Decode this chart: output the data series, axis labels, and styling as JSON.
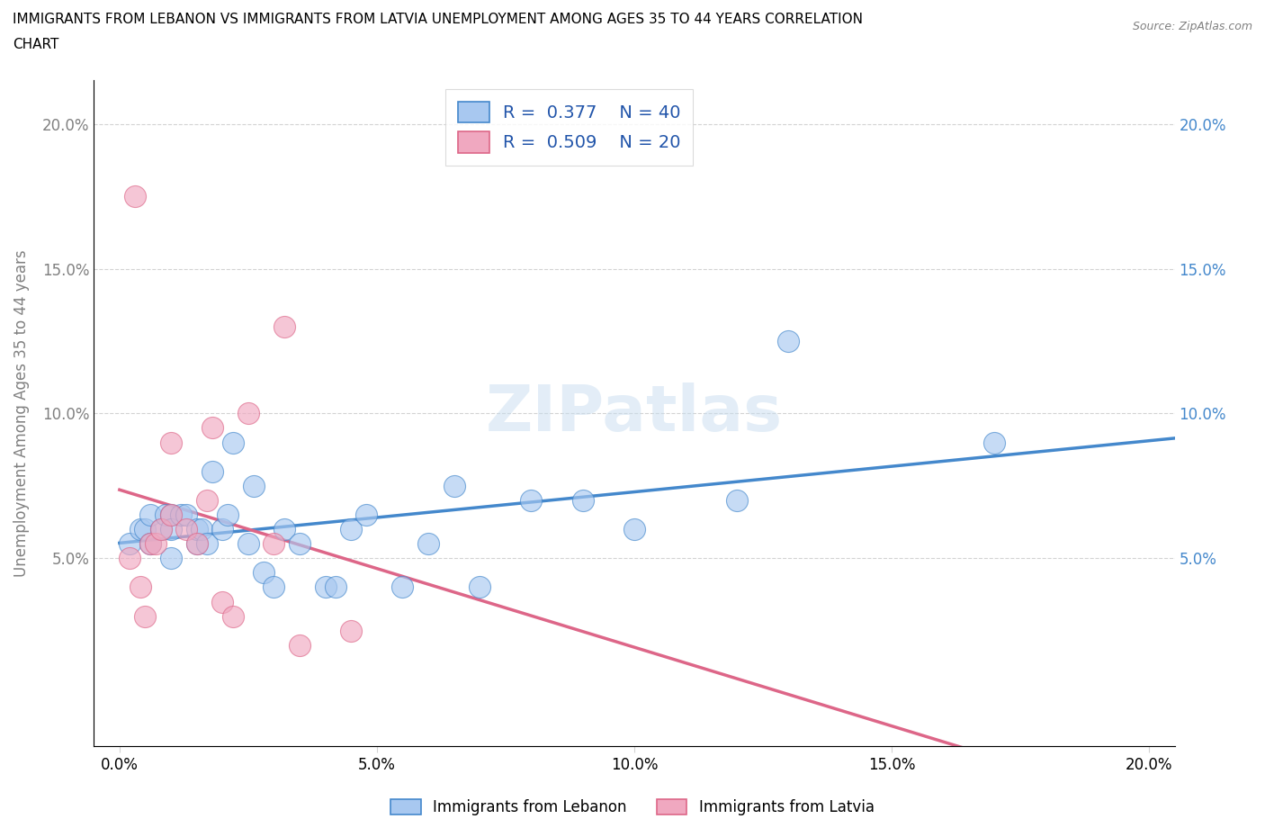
{
  "title_line1": "IMMIGRANTS FROM LEBANON VS IMMIGRANTS FROM LATVIA UNEMPLOYMENT AMONG AGES 35 TO 44 YEARS CORRELATION",
  "title_line2": "CHART",
  "source": "Source: ZipAtlas.com",
  "xlabel_label": "Immigrants from Lebanon",
  "ylabel_label": "Unemployment Among Ages 35 to 44 years",
  "xlim": [
    -0.005,
    0.205
  ],
  "ylim": [
    -0.015,
    0.215
  ],
  "xticks": [
    0.0,
    0.05,
    0.1,
    0.15,
    0.2
  ],
  "yticks": [
    0.05,
    0.1,
    0.15,
    0.2
  ],
  "xticklabels": [
    "0.0%",
    "5.0%",
    "10.0%",
    "15.0%",
    "20.0%"
  ],
  "yticklabels": [
    "5.0%",
    "10.0%",
    "15.0%",
    "20.0%"
  ],
  "right_yticklabels": [
    "5.0%",
    "10.0%",
    "15.0%",
    "20.0%"
  ],
  "right_yticks": [
    0.05,
    0.1,
    0.15,
    0.2
  ],
  "lebanon_color": "#a8c8f0",
  "latvia_color": "#f0a8c0",
  "lebanon_R": 0.377,
  "lebanon_N": 40,
  "latvia_R": 0.509,
  "latvia_N": 20,
  "lebanon_line_color": "#4488cc",
  "latvia_line_color": "#dd6688",
  "legend_R_color": "#2255aa",
  "right_tick_color": "#4488cc",
  "watermark": "ZIPatlas",
  "lebanon_x": [
    0.002,
    0.004,
    0.005,
    0.006,
    0.006,
    0.008,
    0.009,
    0.01,
    0.01,
    0.01,
    0.012,
    0.013,
    0.015,
    0.015,
    0.016,
    0.017,
    0.018,
    0.02,
    0.021,
    0.022,
    0.025,
    0.026,
    0.028,
    0.03,
    0.032,
    0.035,
    0.04,
    0.042,
    0.045,
    0.048,
    0.055,
    0.06,
    0.065,
    0.07,
    0.08,
    0.09,
    0.1,
    0.12,
    0.13,
    0.17
  ],
  "lebanon_y": [
    0.055,
    0.06,
    0.06,
    0.055,
    0.065,
    0.06,
    0.065,
    0.05,
    0.065,
    0.06,
    0.065,
    0.065,
    0.055,
    0.06,
    0.06,
    0.055,
    0.08,
    0.06,
    0.065,
    0.09,
    0.055,
    0.075,
    0.045,
    0.04,
    0.06,
    0.055,
    0.04,
    0.04,
    0.06,
    0.065,
    0.04,
    0.055,
    0.075,
    0.04,
    0.07,
    0.07,
    0.06,
    0.07,
    0.125,
    0.09
  ],
  "latvia_x": [
    0.002,
    0.003,
    0.004,
    0.005,
    0.006,
    0.007,
    0.008,
    0.01,
    0.01,
    0.013,
    0.015,
    0.017,
    0.018,
    0.02,
    0.022,
    0.025,
    0.03,
    0.032,
    0.035,
    0.045
  ],
  "latvia_y": [
    0.05,
    0.175,
    0.04,
    0.03,
    0.055,
    0.055,
    0.06,
    0.065,
    0.09,
    0.06,
    0.055,
    0.07,
    0.095,
    0.035,
    0.03,
    0.1,
    0.055,
    0.13,
    0.02,
    0.025
  ]
}
